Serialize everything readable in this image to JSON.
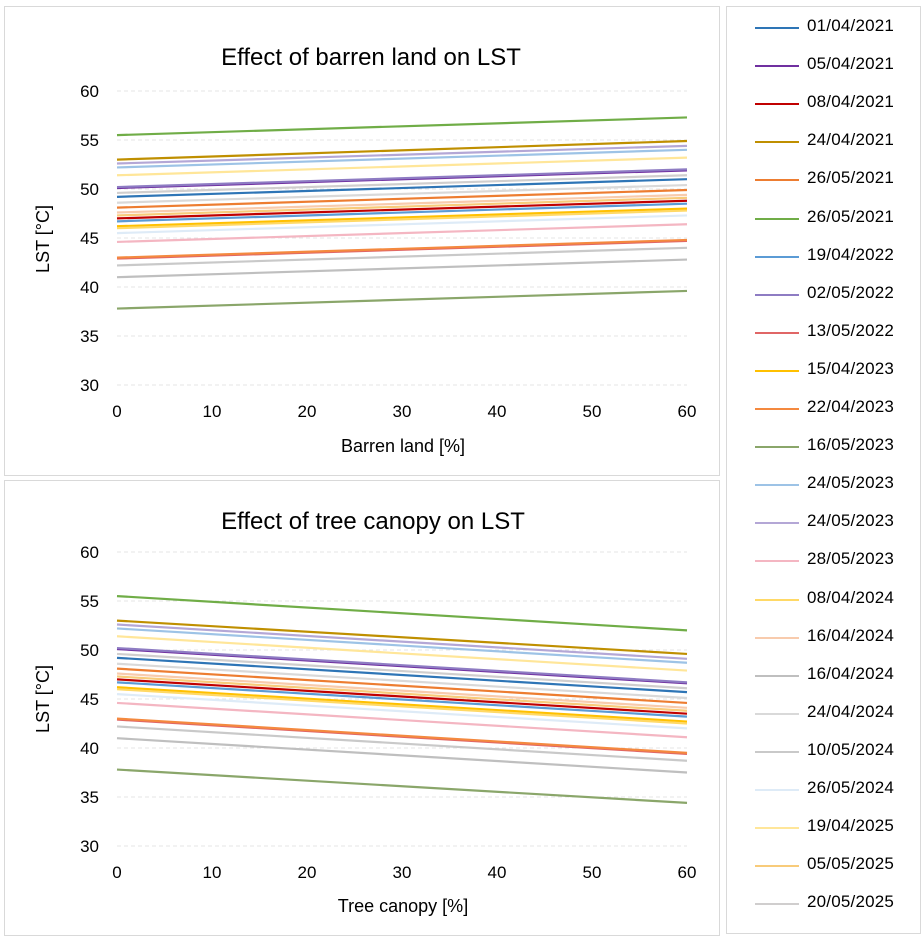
{
  "chart_data": [
    {
      "type": "line",
      "title": "Effect of barren land on LST",
      "xlabel": "Barren land [%]",
      "ylabel": "LST [°C]",
      "xlim": [
        0,
        60
      ],
      "ylim": [
        30,
        60
      ],
      "x_ticks": [
        0,
        10,
        20,
        30,
        40,
        50,
        60
      ],
      "y_ticks": [
        30,
        35,
        40,
        45,
        50,
        55,
        60
      ],
      "grid": true,
      "series": [
        {
          "name": "01/04/2021",
          "color": "#2e75b6",
          "x": [
            0,
            60
          ],
          "values": [
            49.2,
            51.0
          ]
        },
        {
          "name": "05/04/2021",
          "color": "#7030a0",
          "x": [
            0,
            60
          ],
          "values": [
            50.1,
            51.9
          ]
        },
        {
          "name": "08/04/2021",
          "color": "#c00000",
          "x": [
            0,
            60
          ],
          "values": [
            47.0,
            48.8
          ]
        },
        {
          "name": "24/04/2021",
          "color": "#bf8f00",
          "x": [
            0,
            60
          ],
          "values": [
            53.0,
            54.9
          ]
        },
        {
          "name": "26/05/2021",
          "color": "#ed7d31",
          "x": [
            0,
            60
          ],
          "values": [
            48.1,
            49.9
          ]
        },
        {
          "name": "26/05/2021",
          "color": "#70ad47",
          "x": [
            0,
            60
          ],
          "values": [
            55.5,
            57.3
          ]
        },
        {
          "name": "19/04/2022",
          "color": "#5b9bd5",
          "x": [
            0,
            60
          ],
          "values": [
            46.7,
            48.5
          ]
        },
        {
          "name": "02/05/2022",
          "color": "#8e7cc3",
          "x": [
            0,
            60
          ],
          "values": [
            50.2,
            52.0
          ]
        },
        {
          "name": "13/05/2022",
          "color": "#e06666",
          "x": [
            0,
            60
          ],
          "values": [
            42.9,
            44.7
          ]
        },
        {
          "name": "15/04/2023",
          "color": "#ffc000",
          "x": [
            0,
            60
          ],
          "values": [
            46.2,
            48.0
          ]
        },
        {
          "name": "22/04/2023",
          "color": "#f4893f",
          "x": [
            0,
            60
          ],
          "values": [
            43.0,
            44.8
          ]
        },
        {
          "name": "16/05/2023",
          "color": "#8aa66a",
          "x": [
            0,
            60
          ],
          "values": [
            37.8,
            39.6
          ]
        },
        {
          "name": "24/05/2023",
          "color": "#9dc3e6",
          "x": [
            0,
            60
          ],
          "values": [
            52.2,
            54.0
          ]
        },
        {
          "name": "24/05/2023",
          "color": "#b4a7d6",
          "x": [
            0,
            60
          ],
          "values": [
            52.6,
            54.4
          ]
        },
        {
          "name": "28/05/2023",
          "color": "#f4b6c2",
          "x": [
            0,
            60
          ],
          "values": [
            44.6,
            46.4
          ]
        },
        {
          "name": "08/04/2024",
          "color": "#ffd966",
          "x": [
            0,
            60
          ],
          "values": [
            46.0,
            47.8
          ]
        },
        {
          "name": "16/04/2024",
          "color": "#f8cbad",
          "x": [
            0,
            60
          ],
          "values": [
            47.6,
            49.4
          ]
        },
        {
          "name": "16/04/2024",
          "color": "#bfbfbf",
          "x": [
            0,
            60
          ],
          "values": [
            41.0,
            42.8
          ]
        },
        {
          "name": "24/04/2024",
          "color": "#d9d9d9",
          "x": [
            0,
            60
          ],
          "values": [
            48.6,
            50.4
          ]
        },
        {
          "name": "10/05/2024",
          "color": "#c9c9c9",
          "x": [
            0,
            60
          ],
          "values": [
            42.2,
            44.0
          ]
        },
        {
          "name": "26/05/2024",
          "color": "#deebf7",
          "x": [
            0,
            60
          ],
          "values": [
            45.5,
            47.3
          ]
        },
        {
          "name": "19/04/2025",
          "color": "#ffe699",
          "x": [
            0,
            60
          ],
          "values": [
            51.4,
            53.2
          ]
        },
        {
          "name": "05/05/2025",
          "color": "#f8cb7a",
          "x": [
            0,
            60
          ],
          "values": [
            47.3,
            49.1
          ]
        },
        {
          "name": "20/05/2025",
          "color": "#d0cece",
          "x": [
            0,
            60
          ],
          "values": [
            49.6,
            51.4
          ]
        }
      ]
    },
    {
      "type": "line",
      "title": "Effect of tree canopy on LST",
      "xlabel": "Tree canopy [%]",
      "ylabel": "LST [°C]",
      "xlim": [
        0,
        60
      ],
      "ylim": [
        30,
        60
      ],
      "x_ticks": [
        0,
        10,
        20,
        30,
        40,
        50,
        60
      ],
      "y_ticks": [
        30,
        35,
        40,
        45,
        50,
        55,
        60
      ],
      "grid": true,
      "series": [
        {
          "name": "01/04/2021",
          "color": "#2e75b6",
          "x": [
            0,
            60
          ],
          "values": [
            49.2,
            45.7
          ]
        },
        {
          "name": "05/04/2021",
          "color": "#7030a0",
          "x": [
            0,
            60
          ],
          "values": [
            50.1,
            46.6
          ]
        },
        {
          "name": "08/04/2021",
          "color": "#c00000",
          "x": [
            0,
            60
          ],
          "values": [
            47.0,
            43.5
          ]
        },
        {
          "name": "24/04/2021",
          "color": "#bf8f00",
          "x": [
            0,
            60
          ],
          "values": [
            53.0,
            49.6
          ]
        },
        {
          "name": "26/05/2021",
          "color": "#ed7d31",
          "x": [
            0,
            60
          ],
          "values": [
            48.1,
            44.6
          ]
        },
        {
          "name": "26/05/2021",
          "color": "#70ad47",
          "x": [
            0,
            60
          ],
          "values": [
            55.5,
            52.0
          ]
        },
        {
          "name": "19/04/2022",
          "color": "#5b9bd5",
          "x": [
            0,
            60
          ],
          "values": [
            46.7,
            43.2
          ]
        },
        {
          "name": "02/05/2022",
          "color": "#8e7cc3",
          "x": [
            0,
            60
          ],
          "values": [
            50.2,
            46.7
          ]
        },
        {
          "name": "13/05/2022",
          "color": "#e06666",
          "x": [
            0,
            60
          ],
          "values": [
            42.9,
            39.4
          ]
        },
        {
          "name": "15/04/2023",
          "color": "#ffc000",
          "x": [
            0,
            60
          ],
          "values": [
            46.2,
            42.7
          ]
        },
        {
          "name": "22/04/2023",
          "color": "#f4893f",
          "x": [
            0,
            60
          ],
          "values": [
            43.0,
            39.5
          ]
        },
        {
          "name": "16/05/2023",
          "color": "#8aa66a",
          "x": [
            0,
            60
          ],
          "values": [
            37.8,
            34.4
          ]
        },
        {
          "name": "24/05/2023",
          "color": "#9dc3e6",
          "x": [
            0,
            60
          ],
          "values": [
            52.2,
            48.7
          ]
        },
        {
          "name": "24/05/2023",
          "color": "#b4a7d6",
          "x": [
            0,
            60
          ],
          "values": [
            52.6,
            49.1
          ]
        },
        {
          "name": "28/05/2023",
          "color": "#f4b6c2",
          "x": [
            0,
            60
          ],
          "values": [
            44.6,
            41.1
          ]
        },
        {
          "name": "08/04/2024",
          "color": "#ffd966",
          "x": [
            0,
            60
          ],
          "values": [
            46.0,
            42.5
          ]
        },
        {
          "name": "16/04/2024",
          "color": "#f8cbad",
          "x": [
            0,
            60
          ],
          "values": [
            47.6,
            44.1
          ]
        },
        {
          "name": "16/04/2024",
          "color": "#bfbfbf",
          "x": [
            0,
            60
          ],
          "values": [
            41.0,
            37.5
          ]
        },
        {
          "name": "24/04/2024",
          "color": "#d9d9d9",
          "x": [
            0,
            60
          ],
          "values": [
            48.6,
            45.1
          ]
        },
        {
          "name": "10/05/2024",
          "color": "#c9c9c9",
          "x": [
            0,
            60
          ],
          "values": [
            42.2,
            38.7
          ]
        },
        {
          "name": "26/05/2024",
          "color": "#deebf7",
          "x": [
            0,
            60
          ],
          "values": [
            45.5,
            42.0
          ]
        },
        {
          "name": "19/04/2025",
          "color": "#ffe699",
          "x": [
            0,
            60
          ],
          "values": [
            51.4,
            47.9
          ]
        },
        {
          "name": "05/05/2025",
          "color": "#f8cb7a",
          "x": [
            0,
            60
          ],
          "values": [
            47.3,
            43.8
          ]
        },
        {
          "name": "20/05/2025",
          "color": "#d0cece",
          "x": [
            0,
            60
          ],
          "values": [
            49.6,
            46.1
          ]
        }
      ]
    }
  ],
  "legend": {
    "placement": "right",
    "items": [
      {
        "label": "01/04/2021",
        "color": "#2e75b6"
      },
      {
        "label": "05/04/2021",
        "color": "#7030a0"
      },
      {
        "label": "08/04/2021",
        "color": "#c00000"
      },
      {
        "label": "24/04/2021",
        "color": "#bf8f00"
      },
      {
        "label": "26/05/2021",
        "color": "#ed7d31"
      },
      {
        "label": "26/05/2021",
        "color": "#70ad47"
      },
      {
        "label": "19/04/2022",
        "color": "#5b9bd5"
      },
      {
        "label": "02/05/2022",
        "color": "#8e7cc3"
      },
      {
        "label": "13/05/2022",
        "color": "#e06666"
      },
      {
        "label": "15/04/2023",
        "color": "#ffc000"
      },
      {
        "label": "22/04/2023",
        "color": "#f4893f"
      },
      {
        "label": "16/05/2023",
        "color": "#8aa66a"
      },
      {
        "label": "24/05/2023",
        "color": "#9dc3e6"
      },
      {
        "label": "24/05/2023",
        "color": "#b4a7d6"
      },
      {
        "label": "28/05/2023",
        "color": "#f4b6c2"
      },
      {
        "label": "08/04/2024",
        "color": "#ffd966"
      },
      {
        "label": "16/04/2024",
        "color": "#f8cbad"
      },
      {
        "label": "16/04/2024",
        "color": "#bfbfbf"
      },
      {
        "label": "24/04/2024",
        "color": "#d9d9d9"
      },
      {
        "label": "10/05/2024",
        "color": "#c9c9c9"
      },
      {
        "label": "26/05/2024",
        "color": "#deebf7"
      },
      {
        "label": "19/04/2025",
        "color": "#ffe699"
      },
      {
        "label": "05/05/2025",
        "color": "#f8cb7a"
      },
      {
        "label": "20/05/2025",
        "color": "#d0cece"
      }
    ]
  }
}
